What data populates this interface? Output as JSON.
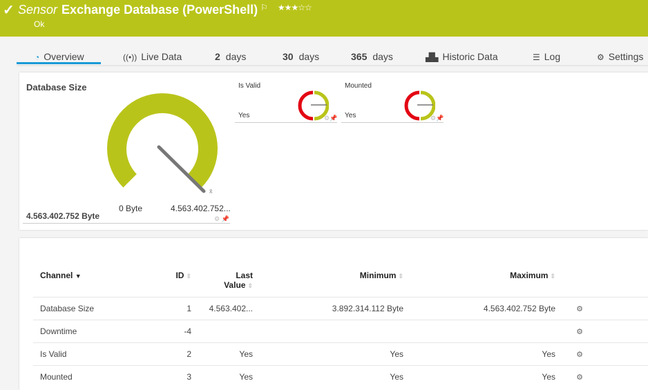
{
  "header": {
    "prefix": "Sensor",
    "title": "Exchange Database (PowerShell)",
    "status": "Ok",
    "priority_stars": 3,
    "priority_max": 5,
    "brand_color": "#b9c41a",
    "icons": {
      "status": "check-icon",
      "flag": "flag-icon"
    }
  },
  "tabs": [
    {
      "label": "Overview",
      "icon": "gauge-icon",
      "active": true
    },
    {
      "label": "Live Data",
      "icon": "broadcast-icon"
    },
    {
      "num": "2",
      "label": "days"
    },
    {
      "num": "30",
      "label": "days"
    },
    {
      "num": "365",
      "label": "days"
    },
    {
      "label": "Historic Data",
      "icon": "area-chart-icon"
    },
    {
      "label": "Log",
      "icon": "list-icon"
    },
    {
      "label": "Settings",
      "icon": "gear-icon"
    }
  ],
  "gauges": {
    "main": {
      "title": "Database Size",
      "value": "4.563.402.752 Byte",
      "min_label": "0 Byte",
      "max_label": "4.563.402.752...",
      "marker": "x̄",
      "fill_fraction": 1.0
    },
    "is_valid": {
      "title": "Is Valid",
      "value": "Yes"
    },
    "mounted": {
      "title": "Mounted",
      "value": "Yes"
    }
  },
  "table": {
    "headers": {
      "channel": "Channel",
      "id": "ID",
      "last_value_1": "Last",
      "last_value_2": "Value",
      "minimum": "Minimum",
      "maximum": "Maximum"
    },
    "rows": [
      {
        "channel": "Database Size",
        "id": "1",
        "last": "4.563.402...",
        "min": "3.892.314.112 Byte",
        "max": "4.563.402.752 Byte"
      },
      {
        "channel": "Downtime",
        "id": "-4",
        "last": "",
        "min": "",
        "max": ""
      },
      {
        "channel": "Is Valid",
        "id": "2",
        "last": "Yes",
        "min": "Yes",
        "max": "Yes"
      },
      {
        "channel": "Mounted",
        "id": "3",
        "last": "Yes",
        "min": "Yes",
        "max": "Yes"
      }
    ]
  },
  "colors": {
    "ok": "#b9c41a",
    "error": "#e30613",
    "accent": "#1a9ad6"
  }
}
